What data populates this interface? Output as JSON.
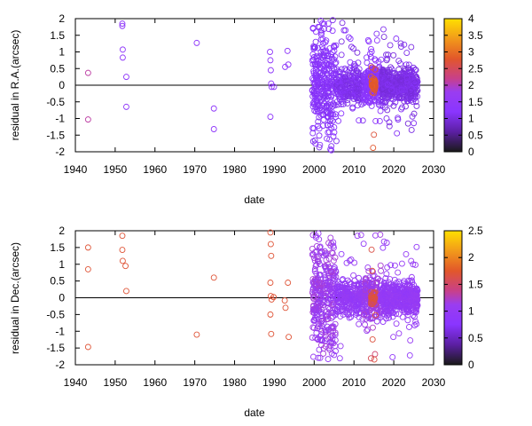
{
  "chart_data": [
    {
      "type": "scatter",
      "xlabel": "date",
      "ylabel": "residual in R.A.(arcsec)",
      "xlim": [
        1940,
        2030
      ],
      "ylim": [
        -2,
        2
      ],
      "x_ticks": [
        "1940",
        "1950",
        "1960",
        "1970",
        "1980",
        "1990",
        "2000",
        "2010",
        "2020",
        "2030"
      ],
      "y_ticks": [
        "-2",
        "-1.5",
        "-1",
        "-0.5",
        "0",
        "0.5",
        "1",
        "1.5",
        "2"
      ],
      "colorbar": {
        "range": [
          0,
          4
        ],
        "ticks": [
          "0",
          "0.5",
          "1",
          "1.5",
          "2",
          "2.5",
          "3",
          "3.5",
          "4"
        ]
      },
      "zero_line": true,
      "grid": false,
      "sparse_points": [
        {
          "x": 1943.2,
          "y": 0.37,
          "c": 2.1
        },
        {
          "x": 1943.2,
          "y": -1.03,
          "c": 2.1
        },
        {
          "x": 1951.8,
          "y": 1.85,
          "c": 1.4
        },
        {
          "x": 1951.8,
          "y": 1.78,
          "c": 1.4
        },
        {
          "x": 1951.9,
          "y": 1.07,
          "c": 1.4
        },
        {
          "x": 1951.9,
          "y": 0.83,
          "c": 1.4
        },
        {
          "x": 1952.8,
          "y": 0.25,
          "c": 1.4
        },
        {
          "x": 1952.8,
          "y": -0.65,
          "c": 1.4
        },
        {
          "x": 1970.5,
          "y": 1.27,
          "c": 1.4
        },
        {
          "x": 1974.8,
          "y": -0.7,
          "c": 1.4
        },
        {
          "x": 1974.8,
          "y": -1.32,
          "c": 1.4
        },
        {
          "x": 1988.9,
          "y": 1.0,
          "c": 1.4
        },
        {
          "x": 1989.0,
          "y": 0.75,
          "c": 1.4
        },
        {
          "x": 1989.1,
          "y": 0.45,
          "c": 1.4
        },
        {
          "x": 1989.2,
          "y": 0.05,
          "c": 1.4
        },
        {
          "x": 1989.3,
          "y": -0.05,
          "c": 1.4
        },
        {
          "x": 1989.0,
          "y": -0.95,
          "c": 1.4
        },
        {
          "x": 1989.9,
          "y": -0.05,
          "c": 1.4
        },
        {
          "x": 1992.7,
          "y": 0.55,
          "c": 1.4
        },
        {
          "x": 1993.3,
          "y": 1.03,
          "c": 1.4
        },
        {
          "x": 1993.5,
          "y": 0.62,
          "c": 1.4
        }
      ],
      "dense_regions": [
        {
          "x_range": [
            1999.5,
            2005.5
          ],
          "y_spread": 1.6,
          "count": 320,
          "c": 1.2
        },
        {
          "x_range": [
            2005.5,
            2012.5
          ],
          "y_spread": 0.55,
          "count": 260,
          "c": 1.1
        },
        {
          "x_range": [
            2012.5,
            2017.0
          ],
          "y_spread": 0.7,
          "count": 220,
          "c": 1.25
        },
        {
          "x_range": [
            2017.0,
            2026.0
          ],
          "y_spread": 0.5,
          "count": 480,
          "c": 1.05
        },
        {
          "x_range": [
            2014.2,
            2015.4
          ],
          "y_spread": 0.25,
          "count": 40,
          "c": 2.8
        }
      ]
    },
    {
      "type": "scatter",
      "xlabel": "date",
      "ylabel": "residual in Dec.(arcsec)",
      "xlim": [
        1940,
        2030
      ],
      "ylim": [
        -2,
        2
      ],
      "x_ticks": [
        "1940",
        "1950",
        "1960",
        "1970",
        "1980",
        "1990",
        "2000",
        "2010",
        "2020",
        "2030"
      ],
      "y_ticks": [
        "-2",
        "-1.5",
        "-1",
        "-0.5",
        "0",
        "0.5",
        "1",
        "1.5",
        "2"
      ],
      "colorbar": {
        "range": [
          0,
          2.5
        ],
        "ticks": [
          "0",
          "0.5",
          "1",
          "1.5",
          "2",
          "2.5"
        ]
      },
      "zero_line": true,
      "grid": false,
      "sparse_points": [
        {
          "x": 1943.2,
          "y": 1.5,
          "c": 1.7
        },
        {
          "x": 1943.2,
          "y": 0.85,
          "c": 1.7
        },
        {
          "x": 1943.2,
          "y": -1.47,
          "c": 1.7
        },
        {
          "x": 1951.8,
          "y": 1.85,
          "c": 1.7
        },
        {
          "x": 1951.8,
          "y": 1.43,
          "c": 1.7
        },
        {
          "x": 1951.9,
          "y": 1.1,
          "c": 1.7
        },
        {
          "x": 1952.6,
          "y": 0.95,
          "c": 1.7
        },
        {
          "x": 1952.8,
          "y": 0.2,
          "c": 1.7
        },
        {
          "x": 1970.5,
          "y": -1.1,
          "c": 1.7
        },
        {
          "x": 1974.8,
          "y": 0.6,
          "c": 1.7
        },
        {
          "x": 1989.0,
          "y": 1.95,
          "c": 1.7
        },
        {
          "x": 1989.1,
          "y": 1.6,
          "c": 1.7
        },
        {
          "x": 1989.2,
          "y": 1.25,
          "c": 1.7
        },
        {
          "x": 1989.0,
          "y": 0.45,
          "c": 1.7
        },
        {
          "x": 1989.1,
          "y": 0.05,
          "c": 1.7
        },
        {
          "x": 1989.3,
          "y": -0.05,
          "c": 1.7
        },
        {
          "x": 1989.0,
          "y": -0.5,
          "c": 1.7
        },
        {
          "x": 1989.2,
          "y": -1.08,
          "c": 1.7
        },
        {
          "x": 1989.8,
          "y": 0.02,
          "c": 1.7
        },
        {
          "x": 1992.6,
          "y": -0.08,
          "c": 1.7
        },
        {
          "x": 1992.8,
          "y": -0.3,
          "c": 1.7
        },
        {
          "x": 1993.4,
          "y": 0.45,
          "c": 1.7
        },
        {
          "x": 1993.6,
          "y": -1.17,
          "c": 1.7
        }
      ],
      "dense_regions": [
        {
          "x_range": [
            1999.5,
            2005.5
          ],
          "y_spread": 1.6,
          "count": 320,
          "c": 1.1
        },
        {
          "x_range": [
            2005.5,
            2012.5
          ],
          "y_spread": 0.5,
          "count": 260,
          "c": 1.0
        },
        {
          "x_range": [
            2012.5,
            2017.0
          ],
          "y_spread": 0.65,
          "count": 220,
          "c": 1.1
        },
        {
          "x_range": [
            2017.0,
            2026.0
          ],
          "y_spread": 0.5,
          "count": 480,
          "c": 1.0
        },
        {
          "x_range": [
            2014.2,
            2015.4
          ],
          "y_spread": 0.25,
          "count": 40,
          "c": 1.6
        }
      ]
    }
  ]
}
